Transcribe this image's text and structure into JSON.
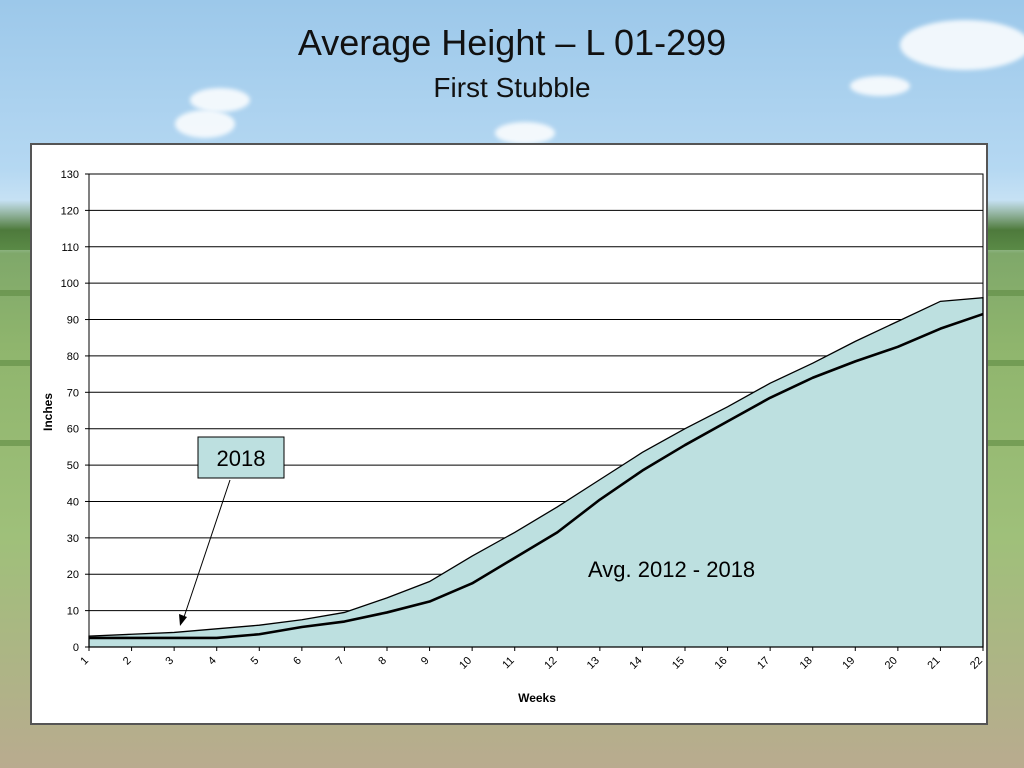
{
  "slide": {
    "title": "Average Height – L 01-299",
    "subtitle": "First Stubble"
  },
  "colors": {
    "area_fill": "#bde0e0",
    "line_2018": "#000000",
    "gridline": "#000000",
    "callout_fill": "#bde0e0"
  },
  "chart_data": {
    "type": "area",
    "title": "Average Height – L 01-299",
    "subtitle": "First Stubble",
    "xlabel": "Weeks",
    "ylabel": "Inches",
    "categories": [
      "1",
      "2",
      "3",
      "4",
      "5",
      "6",
      "7",
      "8",
      "9",
      "10",
      "11",
      "12",
      "13",
      "14",
      "15",
      "16",
      "17",
      "18",
      "19",
      "20",
      "21",
      "22"
    ],
    "ylim": [
      0,
      130
    ],
    "yticks": [
      0,
      10,
      20,
      30,
      40,
      50,
      60,
      70,
      80,
      90,
      100,
      110,
      120,
      130
    ],
    "grid": true,
    "series": [
      {
        "name": "Avg. 2012 - 2018",
        "type": "area",
        "values": [
          3,
          3.5,
          4,
          5,
          6,
          7.5,
          9.5,
          13.5,
          18,
          25,
          31.5,
          38.5,
          46,
          53.5,
          60,
          66,
          72.5,
          78,
          84,
          89.5,
          95,
          96
        ]
      },
      {
        "name": "2018",
        "type": "line",
        "values": [
          2.5,
          2.5,
          2.5,
          2.5,
          3.5,
          5.5,
          7,
          9.5,
          12.5,
          17.5,
          24.5,
          31.5,
          40.5,
          48.5,
          55.5,
          62,
          68.5,
          74,
          78.5,
          82.5,
          87.5,
          91.5
        ]
      }
    ],
    "annotations": [
      {
        "text": "2018",
        "target_series": "2018",
        "target_week": "3.2"
      },
      {
        "text": "Avg. 2012 - 2018"
      }
    ]
  }
}
